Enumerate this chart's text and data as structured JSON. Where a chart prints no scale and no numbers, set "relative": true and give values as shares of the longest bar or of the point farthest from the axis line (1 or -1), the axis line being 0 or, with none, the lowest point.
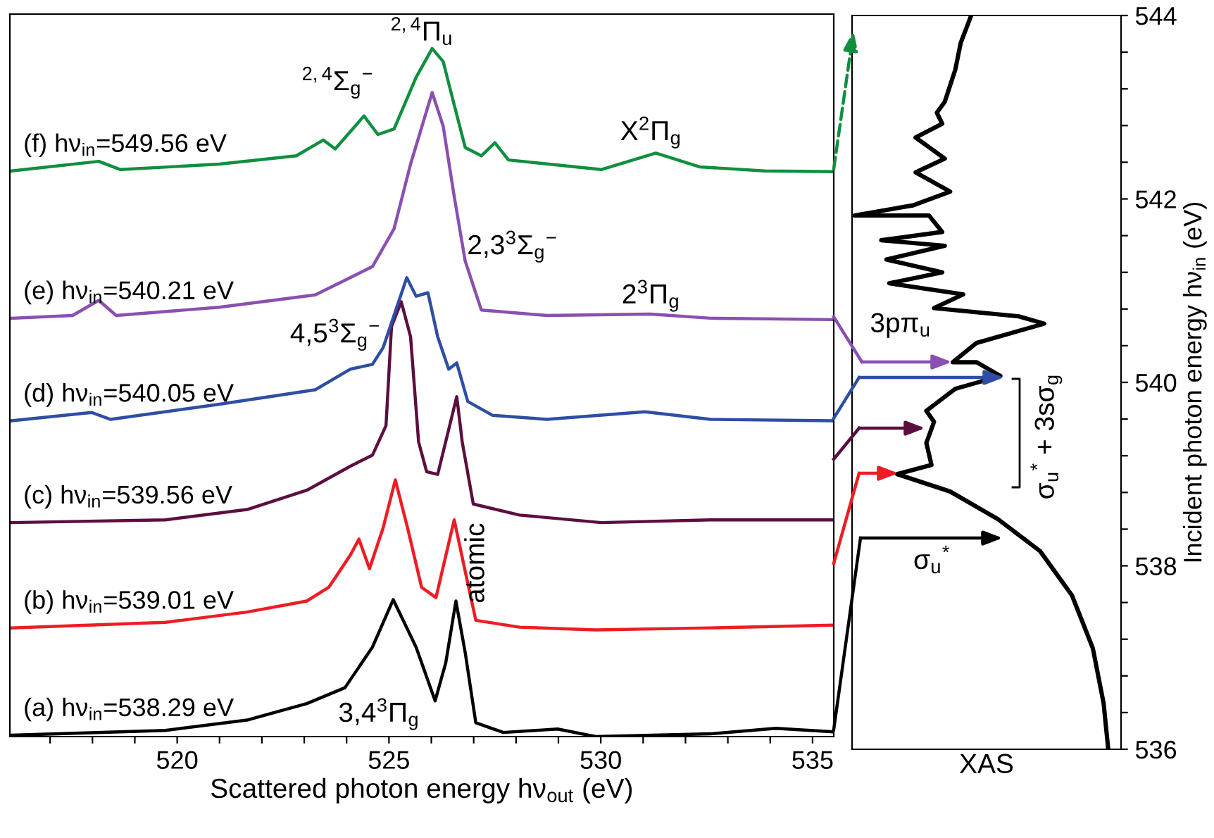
{
  "chart_data": [
    {
      "type": "line",
      "relative": true,
      "xlabel": "Scattered photon energy hν$_{out}$ (eV)",
      "xlim": [
        516.05,
        535.5
      ],
      "xticks": [
        {
          "value": 517,
          "label": null
        },
        {
          "value": 518,
          "label": null
        },
        {
          "value": 519,
          "label": null
        },
        520,
        {
          "value": 521,
          "label": null
        },
        {
          "value": 522,
          "label": null
        },
        {
          "value": 523,
          "label": null
        },
        {
          "value": 524,
          "label": null
        },
        525,
        {
          "value": 526,
          "label": null
        },
        {
          "value": 527,
          "label": null
        },
        {
          "value": 528,
          "label": null
        },
        {
          "value": 529,
          "label": null
        },
        530,
        {
          "value": 531,
          "label": null
        },
        {
          "value": 532,
          "label": null
        },
        {
          "value": 533,
          "label": null
        },
        {
          "value": 534,
          "label": null
        },
        535
      ],
      "tick_labels": "x",
      "series": [
        {
          "name": "(a) hν$_{in}$=538.29 eV",
          "color": "#000000",
          "x": [
            516.09,
            519.72,
            521.65,
            523.06,
            523.96,
            524.61,
            525.1,
            525.64,
            526.09,
            526.34,
            526.58,
            526.8,
            527.05,
            527.7,
            528.98,
            529.88,
            532.59,
            534.13,
            535.48
          ],
          "values": [
            0.002,
            0.009,
            0.024,
            0.048,
            0.071,
            0.13,
            0.199,
            0.13,
            0.052,
            0.107,
            0.197,
            0.122,
            0.02,
            0.006,
            0.011,
            0.0,
            0.004,
            0.012,
            0.007
          ]
        },
        {
          "name": "(b) hν$_{in}$=539.01 eV",
          "color": "#ee1c24",
          "x": [
            516.09,
            519.72,
            521.65,
            523.06,
            523.58,
            524.09,
            524.29,
            524.54,
            524.86,
            525.15,
            525.44,
            525.77,
            526.11,
            526.54,
            526.8,
            527.05,
            528.08,
            529.88,
            532.59,
            535.48
          ],
          "values": [
            0.158,
            0.166,
            0.181,
            0.197,
            0.217,
            0.264,
            0.287,
            0.244,
            0.303,
            0.373,
            0.303,
            0.217,
            0.202,
            0.315,
            0.24,
            0.169,
            0.159,
            0.155,
            0.158,
            0.162
          ]
        },
        {
          "name": "(c) hν$_{in}$=539.56 eV",
          "color": "#5c0f3f",
          "x": [
            516.09,
            519.72,
            521.65,
            523.06,
            524.09,
            524.61,
            524.93,
            525.06,
            525.29,
            525.51,
            525.7,
            525.89,
            526.15,
            526.6,
            526.73,
            526.99,
            528.08,
            530.01,
            532.59,
            535.48
          ],
          "values": [
            0.311,
            0.315,
            0.33,
            0.358,
            0.393,
            0.409,
            0.452,
            0.596,
            0.632,
            0.581,
            0.428,
            0.385,
            0.381,
            0.494,
            0.428,
            0.338,
            0.322,
            0.311,
            0.315,
            0.315
          ]
        },
        {
          "name": "(d) hν$_{in}$=540.05 eV",
          "color": "#2e4ea3",
          "x": [
            516.09,
            517.98,
            518.43,
            521.0,
            523.26,
            524.09,
            524.61,
            524.86,
            525.42,
            525.64,
            525.92,
            526.15,
            526.41,
            526.6,
            526.86,
            527.44,
            528.73,
            531.04,
            532.59,
            535.48
          ],
          "values": [
            0.459,
            0.471,
            0.461,
            0.483,
            0.504,
            0.534,
            0.541,
            0.565,
            0.667,
            0.64,
            0.645,
            0.581,
            0.534,
            0.543,
            0.487,
            0.467,
            0.461,
            0.472,
            0.461,
            0.459
          ]
        },
        {
          "name": "(e) hν$_{in}$=540.21 eV",
          "color": "#8a4fb0",
          "x": [
            516.09,
            517.53,
            518.15,
            518.56,
            521.0,
            523.26,
            524.61,
            525.12,
            525.51,
            526.02,
            526.28,
            526.54,
            526.8,
            527.18,
            528.73,
            531.17,
            532.59,
            535.48
          ],
          "values": [
            0.608,
            0.612,
            0.634,
            0.612,
            0.624,
            0.642,
            0.683,
            0.738,
            0.832,
            0.936,
            0.887,
            0.785,
            0.691,
            0.62,
            0.612,
            0.614,
            0.608,
            0.606
          ]
        },
        {
          "name": "(f) hν$_{in}$=549.56 eV",
          "color": "#0f8f3f",
          "x": [
            516.09,
            518.15,
            518.66,
            521.0,
            522.81,
            523.45,
            523.73,
            524.41,
            524.74,
            525.12,
            525.64,
            526.02,
            526.28,
            526.54,
            526.8,
            527.18,
            527.5,
            527.82,
            530.01,
            531.3,
            532.33,
            533.87,
            535.48
          ],
          "values": [
            0.822,
            0.836,
            0.824,
            0.832,
            0.844,
            0.867,
            0.854,
            0.902,
            0.875,
            0.883,
            0.958,
            1.0,
            0.981,
            0.918,
            0.856,
            0.844,
            0.863,
            0.838,
            0.824,
            0.848,
            0.828,
            0.822,
            0.821
          ]
        }
      ],
      "annotations": [
        "$^{2,4}$Π$_{u}$",
        "$^{2,4}$Σ$_{g}$$^{−}$",
        "X$^{2}$Π$_{g}$",
        "2,3$^{3}$Σ$_{g}$$^{−}$",
        "2$^{3}$Π$_{g}$",
        "4,5$^{3}$Σ$_{g}$$^{−}$",
        "atomic",
        "3,4$^{3}$Π$_{g}$"
      ]
    },
    {
      "type": "line",
      "orientation": "horizontal",
      "relative": true,
      "xlabel": "XAS",
      "ylabel": "Incident photon energy hν$_{in}$ (eV)",
      "color": "#000000",
      "ylim": [
        536,
        544
      ],
      "yticks": [
        536,
        {
          "value": 536.4,
          "label": null
        },
        {
          "value": 536.8,
          "label": null
        },
        {
          "value": 537.2,
          "label": null
        },
        {
          "value": 537.6,
          "label": null
        },
        538,
        {
          "value": 538.4,
          "label": null
        },
        {
          "value": 538.8,
          "label": null
        },
        {
          "value": 539.2,
          "label": null
        },
        {
          "value": 539.6,
          "label": null
        },
        540,
        {
          "value": 540.4,
          "label": null
        },
        {
          "value": 540.8,
          "label": null
        },
        {
          "value": 541.2,
          "label": null
        },
        {
          "value": 541.6,
          "label": null
        },
        542,
        {
          "value": 542.4,
          "label": null
        },
        {
          "value": 542.8,
          "label": null
        },
        {
          "value": 543.2,
          "label": null
        },
        {
          "value": 543.6,
          "label": null
        },
        544
      ],
      "tick_labels": "y",
      "x": [
        536.0,
        536.5,
        537.1,
        537.68,
        538.16,
        538.51,
        538.81,
        539.0,
        539.1,
        539.34,
        539.57,
        539.69,
        539.93,
        540.07,
        540.22,
        540.22,
        540.43,
        540.64,
        540.72,
        540.81,
        540.96,
        541.08,
        541.2,
        541.34,
        541.49,
        541.55,
        541.64,
        541.82,
        541.82,
        541.93,
        542.08,
        542.29,
        542.44,
        542.67,
        542.82,
        542.94,
        543.06,
        543.41,
        543.7,
        544.0
      ],
      "values": [
        1.0,
        0.982,
        0.94,
        0.858,
        0.734,
        0.569,
        0.383,
        0.176,
        0.31,
        0.29,
        0.32,
        0.29,
        0.403,
        0.579,
        0.486,
        0.393,
        0.486,
        0.75,
        0.651,
        0.32,
        0.434,
        0.145,
        0.352,
        0.134,
        0.362,
        0.114,
        0.352,
        0.3,
        0.01,
        0.238,
        0.383,
        0.248,
        0.362,
        0.248,
        0.352,
        0.331,
        0.362,
        0.403,
        0.424,
        0.465
      ],
      "annotations": [
        "3pπ$_{u}$",
        "σ$_{u}$$^{*}$",
        "σ$_{u}$$^{*}$ + 3sσ$_{g}$"
      ]
    }
  ]
}
